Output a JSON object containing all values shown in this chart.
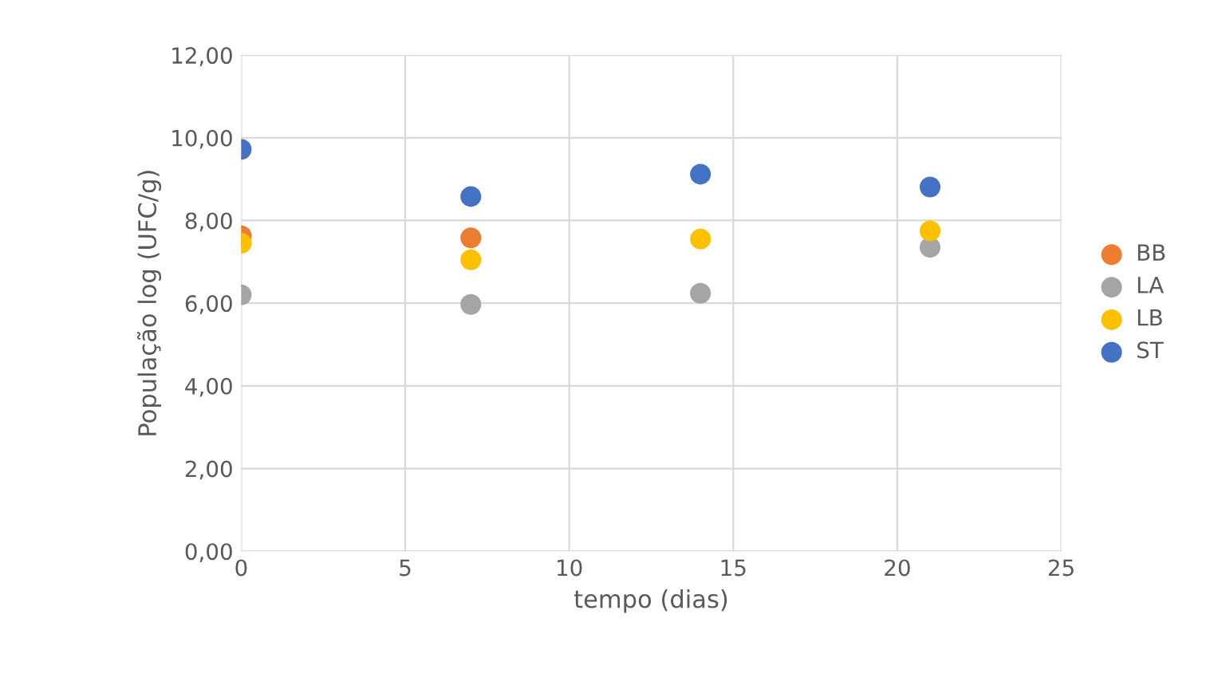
{
  "chart_data": {
    "type": "scatter",
    "xlabel": "tempo (dias)",
    "ylabel": "População log (UFC/g)",
    "x": [
      0,
      7,
      14,
      21
    ],
    "series": [
      {
        "name": "BB",
        "color": "#ed7d31",
        "values": [
          7.63,
          7.58,
          null,
          null
        ]
      },
      {
        "name": "LA",
        "color": "#a5a5a5",
        "values": [
          6.2,
          5.97,
          6.24,
          7.35
        ]
      },
      {
        "name": "LB",
        "color": "#ffc000",
        "values": [
          7.45,
          7.05,
          7.55,
          7.75
        ]
      },
      {
        "name": "ST",
        "color": "#4472c4",
        "values": [
          9.72,
          8.58,
          9.12,
          8.81
        ]
      }
    ],
    "xlim": [
      0,
      25
    ],
    "xticks": [
      0,
      5,
      10,
      15,
      20,
      25
    ],
    "ylim": [
      0,
      12
    ],
    "yticks": [
      {
        "value": 0,
        "label": "0,00"
      },
      {
        "value": 2,
        "label": "2,00"
      },
      {
        "value": 4,
        "label": "4,00"
      },
      {
        "value": 6,
        "label": "6,00"
      },
      {
        "value": 8,
        "label": "8,00"
      },
      {
        "value": 10,
        "label": "10,00"
      },
      {
        "value": 12,
        "label": "12,00"
      }
    ],
    "grid": true,
    "legend": "right",
    "marker": "circle"
  }
}
